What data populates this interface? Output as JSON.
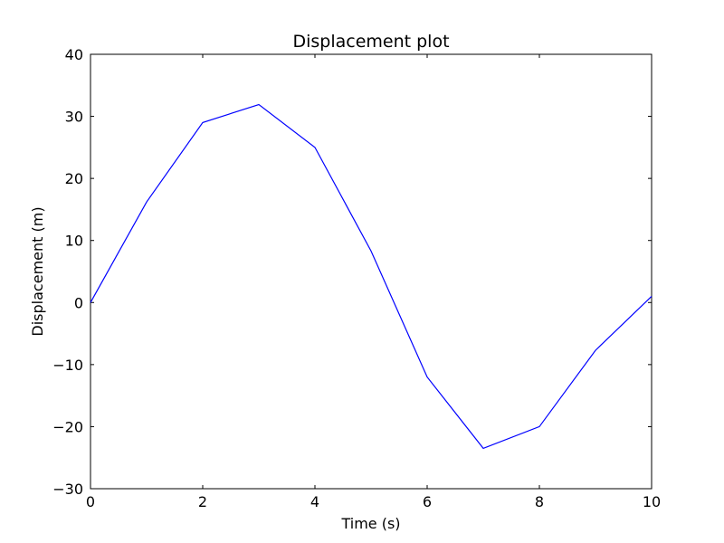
{
  "chart_data": {
    "type": "line",
    "title": "Displacement plot",
    "xlabel": "Time (s)",
    "ylabel": "Displacement (m)",
    "xlim": [
      0,
      10
    ],
    "ylim": [
      -30,
      40
    ],
    "xticks": [
      0,
      2,
      4,
      6,
      8,
      10
    ],
    "yticks": [
      -30,
      -20,
      -10,
      0,
      10,
      20,
      30,
      40
    ],
    "xtick_labels": [
      "0",
      "2",
      "4",
      "6",
      "8",
      "10"
    ],
    "ytick_labels": [
      "−30",
      "−20",
      "−10",
      "0",
      "10",
      "20",
      "30",
      "40"
    ],
    "grid": false,
    "series": [
      {
        "color": "#0000ff",
        "x": [
          0,
          1,
          2,
          3,
          4,
          5,
          6,
          7,
          8,
          9,
          10
        ],
        "y": [
          0,
          16.2,
          29.0,
          31.9,
          25.0,
          8.3,
          -12.0,
          -23.5,
          -20.0,
          -7.7,
          1.0
        ]
      }
    ]
  }
}
